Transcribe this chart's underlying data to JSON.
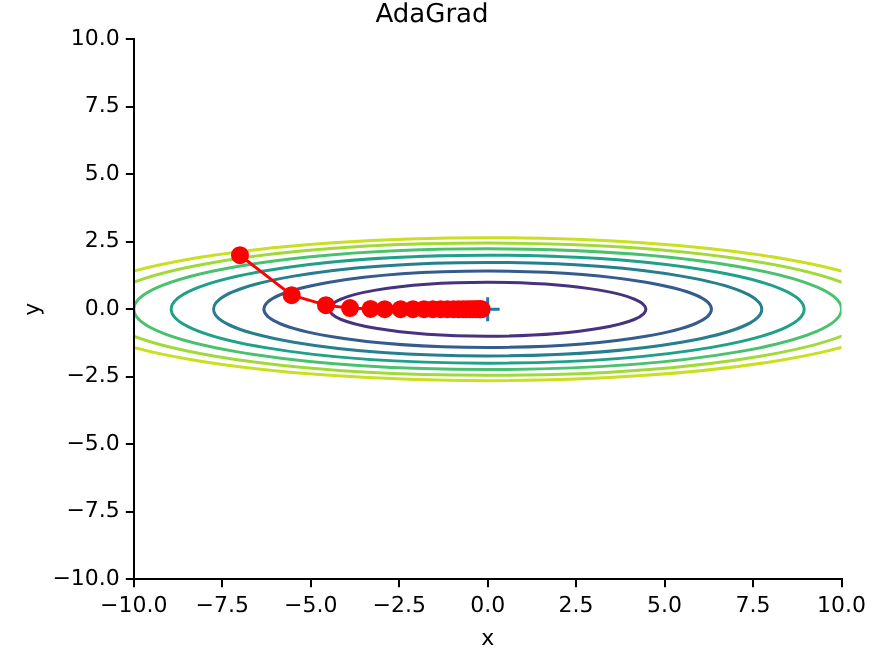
{
  "chart_data": {
    "type": "line",
    "title": "AdaGrad",
    "xlabel": "x",
    "ylabel": "y",
    "xlim": [
      -10,
      10
    ],
    "ylim": [
      -10,
      10
    ],
    "xticks": [
      {
        "value": -10,
        "label": "−10.0"
      },
      {
        "value": -7.5,
        "label": "−7.5"
      },
      {
        "value": -5,
        "label": "−5.0"
      },
      {
        "value": -2.5,
        "label": "−2.5"
      },
      {
        "value": 0,
        "label": "0.0"
      },
      {
        "value": 2.5,
        "label": "2.5"
      },
      {
        "value": 5,
        "label": "5.0"
      },
      {
        "value": 7.5,
        "label": "7.5"
      },
      {
        "value": 10,
        "label": "10.0"
      }
    ],
    "yticks": [
      {
        "value": -10,
        "label": "−10.0"
      },
      {
        "value": -7.5,
        "label": "−7.5"
      },
      {
        "value": -5,
        "label": "−5.0"
      },
      {
        "value": -2.5,
        "label": "−2.5"
      },
      {
        "value": 0,
        "label": "0.0"
      },
      {
        "value": 2.5,
        "label": "2.5"
      },
      {
        "value": 5,
        "label": "5.0"
      },
      {
        "value": 7.5,
        "label": "7.5"
      },
      {
        "value": 10,
        "label": "10.0"
      }
    ],
    "grid": false,
    "legend": false,
    "marker": "circle",
    "line_style": "solid",
    "series": [
      {
        "color": "#ff0000",
        "x": [
          -7,
          -5.54,
          -4.57,
          -3.89,
          -3.31,
          -2.91,
          -2.46,
          -2.11,
          -1.8,
          -1.55,
          -1.33,
          -1.14,
          -0.97,
          -0.83,
          -0.7,
          -0.59,
          -0.5,
          -0.42,
          -0.35,
          -0.29,
          -0.24,
          -0.2,
          -0.17
        ],
        "values": [
          2,
          0.52,
          0.15,
          0.04,
          0.01,
          0,
          0,
          0,
          0,
          0,
          0,
          0,
          0,
          0,
          0,
          0,
          0,
          0,
          0,
          0,
          0,
          0,
          0
        ]
      },
      {
        "type": "scatter",
        "color": "#1f77b4",
        "marker": "cross",
        "x": [
          0
        ],
        "values": [
          0
        ]
      }
    ]
  }
}
